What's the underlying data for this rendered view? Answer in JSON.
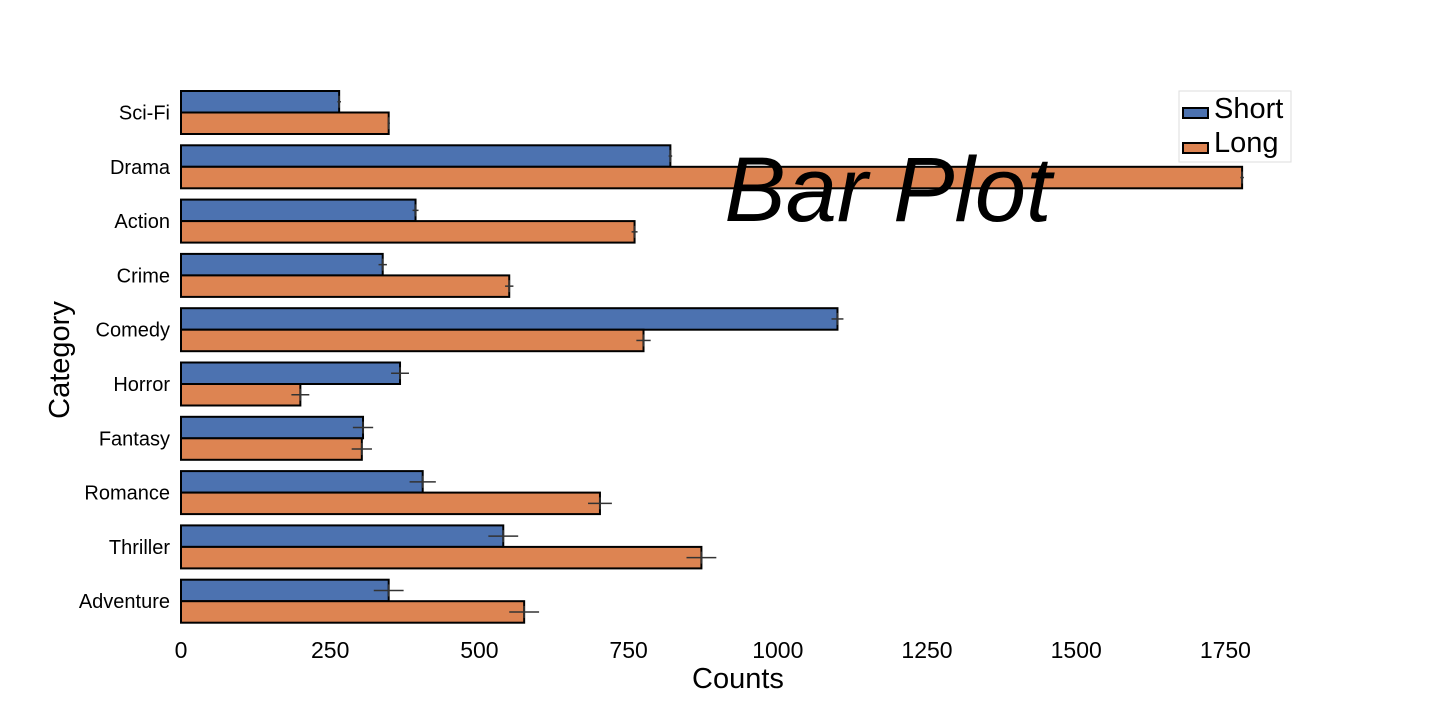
{
  "chart_data": {
    "type": "bar",
    "orientation": "horizontal",
    "title": "Bar Plot",
    "xlabel": "Counts",
    "ylabel": "Category",
    "xlim": [
      0,
      1950
    ],
    "xticks": [
      0,
      250,
      500,
      750,
      1000,
      1250,
      1500,
      1750
    ],
    "categories": [
      "Sci-Fi",
      "Drama",
      "Action",
      "Crime",
      "Comedy",
      "Horror",
      "Fantasy",
      "Romance",
      "Thriller",
      "Adventure"
    ],
    "series": [
      {
        "name": "Short",
        "color": "#4c72b0",
        "values": [
          265,
          820,
          393,
          338,
          1100,
          367,
          305,
          405,
          540,
          348
        ],
        "errors": [
          3,
          3,
          5,
          7,
          10,
          15,
          17,
          22,
          25,
          25
        ]
      },
      {
        "name": "Long",
        "color": "#dd8452",
        "values": [
          348,
          1778,
          760,
          550,
          775,
          200,
          303,
          702,
          872,
          575
        ],
        "errors": [
          2,
          3,
          5,
          7,
          12,
          15,
          17,
          20,
          25,
          25
        ]
      }
    ],
    "legend": {
      "position": "top-right",
      "entries": [
        "Short",
        "Long"
      ]
    },
    "grid": false
  }
}
